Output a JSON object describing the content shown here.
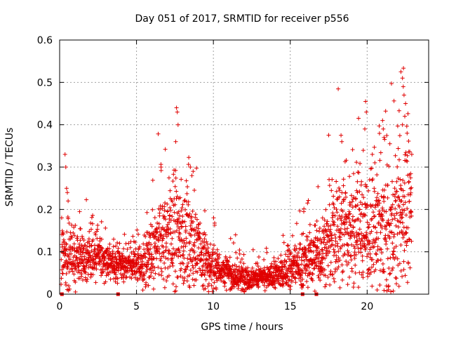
{
  "chart_data": {
    "type": "scatter",
    "title": "Day 051 of 2017, SRMTID for receiver p556",
    "xlabel": "GPS time / hours",
    "ylabel": "SRMTID / TECUs",
    "xlim": [
      0,
      24
    ],
    "ylim": [
      0,
      0.6
    ],
    "xticks": [
      0,
      5,
      10,
      15,
      20
    ],
    "xtick_labels": [
      "0",
      "5",
      "10",
      "15",
      "20"
    ],
    "yticks": [
      0,
      0.1,
      0.2,
      0.3,
      0.4,
      0.5,
      0.6
    ],
    "ytick_labels": [
      "0",
      "0.1",
      "0.2",
      "0.3",
      "0.4",
      "0.5",
      "0.6"
    ],
    "grid": true,
    "marker": "+",
    "series_color": "#e00000",
    "series": [
      {
        "name": "SRMTID",
        "profile_description": "Dense point cloud; approximate median level and spread per hour block",
        "x_range": [
          0.1,
          22.9
        ],
        "median_by_hour": [
          0.09,
          0.08,
          0.09,
          0.07,
          0.07,
          0.07,
          0.12,
          0.15,
          0.13,
          0.07,
          0.06,
          0.04,
          0.04,
          0.04,
          0.05,
          0.07,
          0.09,
          0.12,
          0.16,
          0.16,
          0.15,
          0.14,
          0.2,
          0.22
        ],
        "spread_by_hour": [
          0.04,
          0.03,
          0.03,
          0.02,
          0.02,
          0.03,
          0.06,
          0.08,
          0.06,
          0.04,
          0.02,
          0.02,
          0.015,
          0.015,
          0.02,
          0.03,
          0.04,
          0.06,
          0.08,
          0.08,
          0.07,
          0.08,
          0.09,
          0.1
        ],
        "highlights": [
          {
            "x": 0.35,
            "y": 0.33
          },
          {
            "x": 0.4,
            "y": 0.3
          },
          {
            "x": 0.45,
            "y": 0.25
          },
          {
            "x": 0.5,
            "y": 0.24
          },
          {
            "x": 0.55,
            "y": 0.22
          },
          {
            "x": 1.3,
            "y": 0.195
          },
          {
            "x": 6.6,
            "y": 0.3
          },
          {
            "x": 7.6,
            "y": 0.44
          },
          {
            "x": 7.65,
            "y": 0.43
          },
          {
            "x": 7.7,
            "y": 0.4
          },
          {
            "x": 7.55,
            "y": 0.36
          },
          {
            "x": 8.5,
            "y": 0.3
          },
          {
            "x": 8.6,
            "y": 0.28
          },
          {
            "x": 18.3,
            "y": 0.375
          },
          {
            "x": 18.35,
            "y": 0.36
          },
          {
            "x": 19.9,
            "y": 0.455
          },
          {
            "x": 19.95,
            "y": 0.43
          },
          {
            "x": 19.85,
            "y": 0.39
          },
          {
            "x": 21.0,
            "y": 0.41
          },
          {
            "x": 21.05,
            "y": 0.39
          },
          {
            "x": 21.1,
            "y": 0.37
          },
          {
            "x": 22.2,
            "y": 0.525
          },
          {
            "x": 22.3,
            "y": 0.51
          },
          {
            "x": 22.35,
            "y": 0.49
          },
          {
            "x": 22.4,
            "y": 0.47
          },
          {
            "x": 22.5,
            "y": 0.45
          },
          {
            "x": 22.45,
            "y": 0.42
          },
          {
            "x": 22.3,
            "y": 0.4
          },
          {
            "x": 22.6,
            "y": 0.38
          },
          {
            "x": 22.9,
            "y": 0.33
          }
        ]
      },
      {
        "name": "zero markers",
        "marker": "square",
        "points": [
          {
            "x": 0.15,
            "y": 0
          },
          {
            "x": 3.8,
            "y": 0
          },
          {
            "x": 15.8,
            "y": 0
          },
          {
            "x": 16.7,
            "y": 0
          }
        ]
      }
    ]
  }
}
